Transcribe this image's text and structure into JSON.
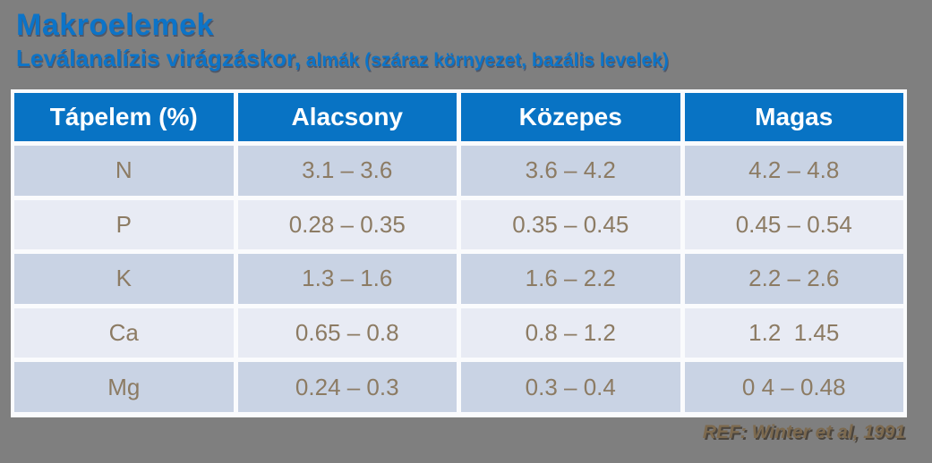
{
  "page": {
    "background_color": "#7F7F7F",
    "accent_blue": "#0873C4",
    "row_dark_color": "#C9D3E4",
    "row_light_color": "#E8EBF4",
    "cell_text_color": "#8C7B63",
    "reference_color": "#7D6A4F"
  },
  "header": {
    "title": "Makroelemek",
    "subtitle_main": "Leválanalízis virágzáskor,",
    "subtitle_detail": " almák (száraz környezet, bazális levelek)"
  },
  "table": {
    "columns": {
      "nutrient": "Tápelem (%)",
      "low": "Alacsony",
      "medium": "Közepes",
      "high": "Magas"
    },
    "rows": [
      {
        "element": "N",
        "low": "3.1 – 3.6",
        "medium": "3.6 – 4.2",
        "high": "4.2 – 4.8"
      },
      {
        "element": "P",
        "low": "0.28 – 0.35",
        "medium": "0.35 – 0.45",
        "high": "0.45 – 0.54"
      },
      {
        "element": "K",
        "low": "1.3 – 1.6",
        "medium": "1.6 – 2.2",
        "high": "2.2 – 2.6"
      },
      {
        "element": "Ca",
        "low": "0.65 – 0.8",
        "medium": "0.8 – 1.2",
        "high": "1.2  1.45"
      },
      {
        "element": "Mg",
        "low": "0.24 – 0.3",
        "medium": "0.3 – 0.4",
        "high": "0 4 – 0.48"
      }
    ]
  },
  "footer": {
    "reference": "REF: Winter et al, 1991"
  }
}
